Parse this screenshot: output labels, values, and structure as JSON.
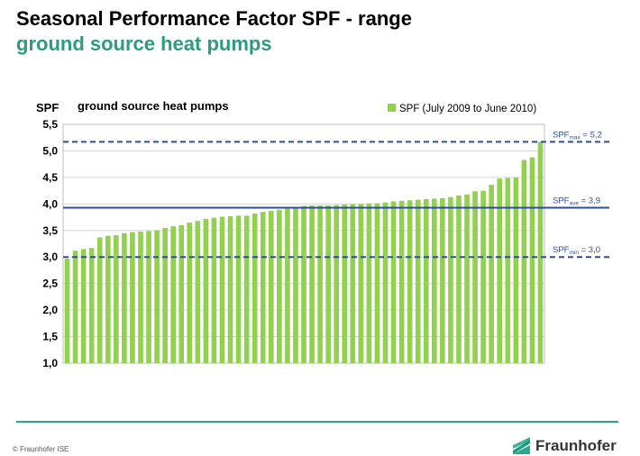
{
  "header": {
    "title": "Seasonal Performance Factor SPF - range",
    "subtitle": "ground source heat pumps"
  },
  "footer": {
    "copyright": "© Fraunhofer ISE",
    "logo_text": "Fraunhofer"
  },
  "colors": {
    "bar": "#92d050",
    "reference_line": "#2e4d9a",
    "accent": "#2a9d80"
  },
  "chart_data": {
    "type": "bar",
    "title": "ground source heat pumps",
    "ylabel": "SPF",
    "ylim": [
      1.0,
      5.5
    ],
    "yticks": [
      "1,0",
      "1,5",
      "2,0",
      "2,5",
      "3,0",
      "3,5",
      "4,0",
      "4,5",
      "5,0",
      "5,5"
    ],
    "grid": true,
    "legend_position": "top-right",
    "series": [
      {
        "name": "SPF (July 2009 to June 2010)",
        "values": [
          2.97,
          3.12,
          3.15,
          3.17,
          3.37,
          3.4,
          3.41,
          3.45,
          3.47,
          3.48,
          3.49,
          3.5,
          3.55,
          3.58,
          3.6,
          3.65,
          3.68,
          3.72,
          3.74,
          3.76,
          3.77,
          3.78,
          3.78,
          3.82,
          3.85,
          3.87,
          3.89,
          3.91,
          3.94,
          3.96,
          3.97,
          3.97,
          3.97,
          3.98,
          3.99,
          4.0,
          4.0,
          4.01,
          4.01,
          4.03,
          4.05,
          4.06,
          4.07,
          4.08,
          4.09,
          4.1,
          4.11,
          4.13,
          4.16,
          4.18,
          4.24,
          4.25,
          4.36,
          4.48,
          4.49,
          4.5,
          4.83,
          4.88,
          5.17
        ]
      }
    ],
    "reference_lines": [
      {
        "name": "SPF",
        "sub": "max",
        "value_label": " = 5,2",
        "value": 5.17,
        "style": "dashed"
      },
      {
        "name": "SPF",
        "sub": "ave",
        "value_label": " = 3,9",
        "value": 3.93,
        "style": "solid"
      },
      {
        "name": "SPF",
        "sub": "min",
        "value_label": " = 3,0",
        "value": 3.0,
        "style": "dashed"
      }
    ]
  }
}
